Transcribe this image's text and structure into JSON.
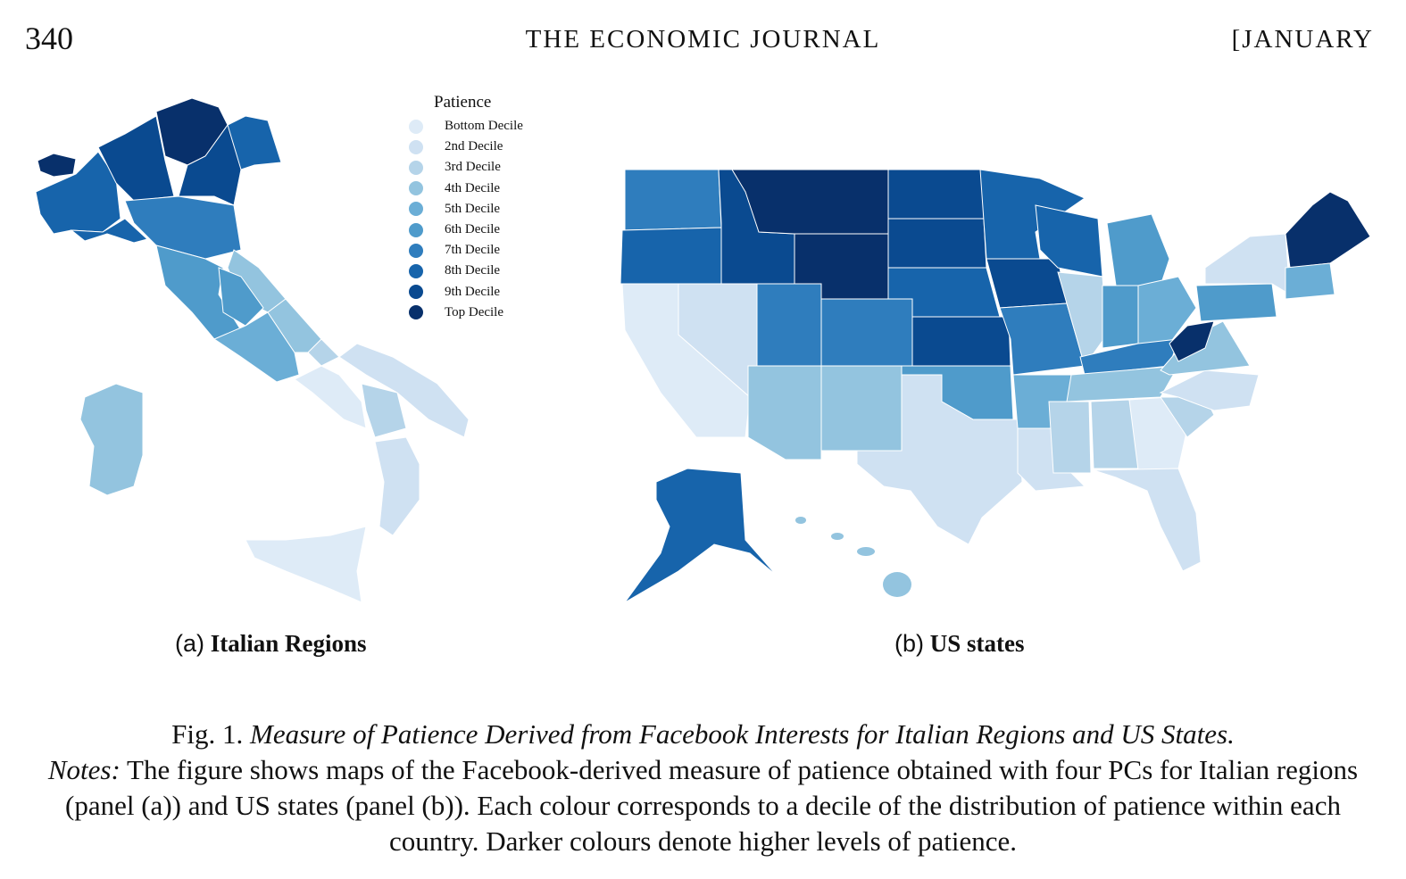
{
  "header": {
    "page_number": "340",
    "journal": "THE ECONOMIC JOURNAL",
    "issue": "[JANUARY"
  },
  "legend": {
    "title": "Patience",
    "items": [
      {
        "label": "Bottom Decile",
        "color": "#deebf7"
      },
      {
        "label": "2nd Decile",
        "color": "#cfe1f2"
      },
      {
        "label": "3rd Decile",
        "color": "#b5d4e9"
      },
      {
        "label": "4th Decile",
        "color": "#93c4df"
      },
      {
        "label": "5th Decile",
        "color": "#6baed6"
      },
      {
        "label": "6th Decile",
        "color": "#4f9bcb"
      },
      {
        "label": "7th Decile",
        "color": "#2f7dbd"
      },
      {
        "label": "8th Decile",
        "color": "#1764ab"
      },
      {
        "label": "9th Decile",
        "color": "#0a4a90"
      },
      {
        "label": "Top Decile",
        "color": "#08306b"
      }
    ]
  },
  "panels": {
    "a": {
      "label": "(a)",
      "title": "Italian Regions"
    },
    "b": {
      "label": "(b)",
      "title": "US states"
    }
  },
  "caption": {
    "fig": "Fig. 1.",
    "title": "Measure of Patience Derived from Facebook Interests for Italian Regions and US States.",
    "notes_label": "Notes:",
    "notes": "The figure shows maps of the Facebook-derived measure of patience obtained with four PCs for Italian regions (panel (a)) and US states (panel (b)). Each colour corresponds to a decile of the distribution of patience within each country. Darker colours denote higher levels of patience."
  }
}
